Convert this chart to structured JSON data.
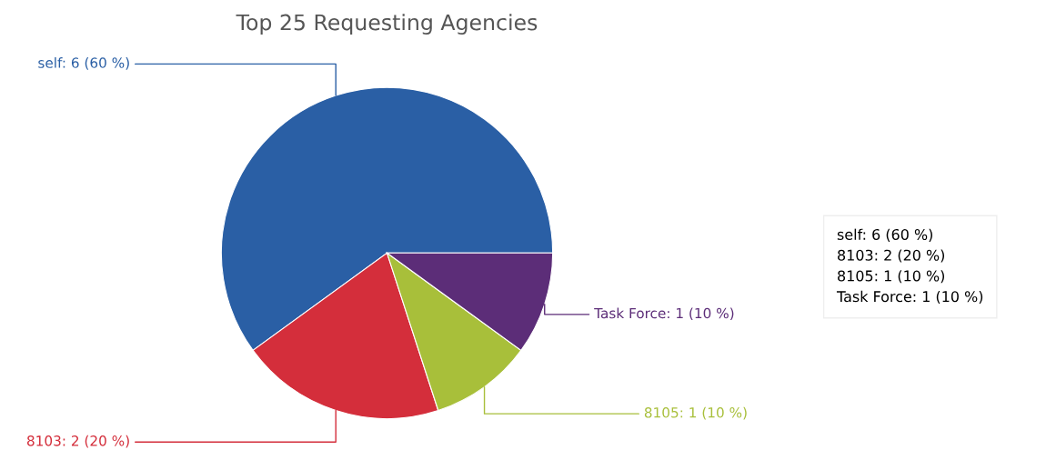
{
  "chart_data": {
    "type": "pie",
    "title": "Top 25 Requesting Agencies",
    "categories": [
      "self: 6 (60 %)",
      "8103: 2 (20 %)",
      "8105: 1 (10 %)",
      "Task Force: 1 (10 %)"
    ],
    "values": [
      6,
      2,
      1,
      1
    ],
    "colors": [
      "#2a5fa5",
      "#d42e3b",
      "#a8bf3a",
      "#5c2d78"
    ],
    "annotations": [
      "self: 6 (60 %)\n8103: 2 (20 %)\n8105: 1 (10 %)\nTask Force: 1 (10 %)"
    ]
  }
}
